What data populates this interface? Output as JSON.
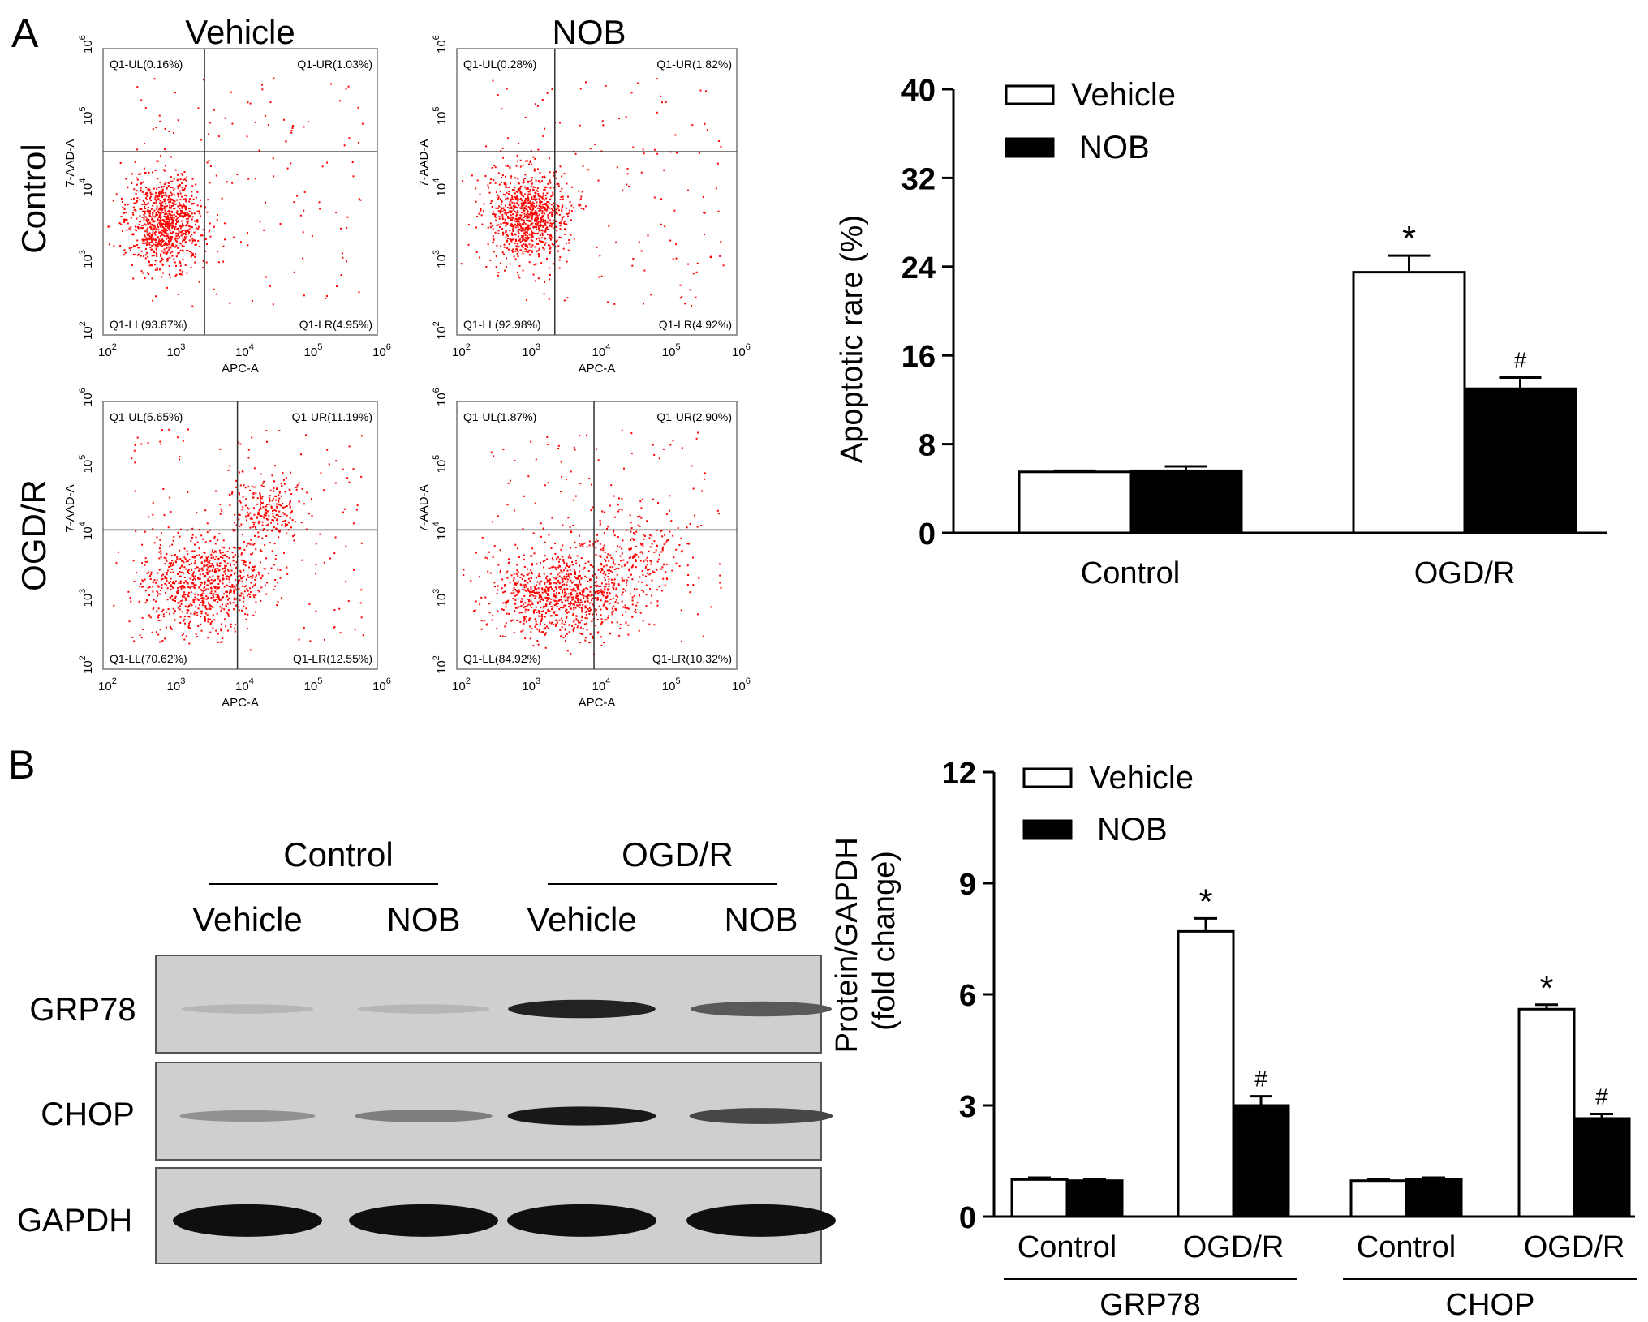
{
  "panel_labels": [
    "A",
    "B"
  ],
  "flow": {
    "col_titles": [
      "Vehicle",
      "NOB"
    ],
    "row_titles": [
      "Control",
      "OGD/R"
    ],
    "x_axis_label": "APC-A",
    "y_axis_label": "7-AAD-A",
    "axis_tick_base": "10",
    "axis_tick_exponents": [
      "2",
      "3",
      "4",
      "5",
      "6"
    ],
    "point_color": "#ff0000",
    "plots": [
      {
        "UL": "Q1-UL(0.16%)",
        "UR": "Q1-UR(1.03%)",
        "LL": "Q1-LL(93.87%)",
        "LR": "Q1-LR(4.95%)"
      },
      {
        "UL": "Q1-UL(0.28%)",
        "UR": "Q1-UR(1.82%)",
        "LL": "Q1-LL(92.98%)",
        "LR": "Q1-LR(4.92%)"
      },
      {
        "UL": "Q1-UL(5.65%)",
        "UR": "Q1-UR(11.19%)",
        "LL": "Q1-LL(70.62%)",
        "LR": "Q1-LR(12.55%)"
      },
      {
        "UL": "Q1-UL(1.87%)",
        "UR": "Q1-UR(2.90%)",
        "LL": "Q1-LL(84.92%)",
        "LR": "Q1-LR(10.32%)"
      }
    ]
  },
  "blot": {
    "group_labels": [
      "Control",
      "OGD/R"
    ],
    "lane_labels": [
      "Vehicle",
      "NOB",
      "Vehicle",
      "NOB"
    ],
    "row_labels": [
      "GRP78",
      "CHOP",
      "GAPDH"
    ],
    "band_intensity": [
      [
        0.1,
        0.1,
        0.9,
        0.6
      ],
      [
        0.3,
        0.4,
        0.95,
        0.7
      ],
      [
        1.0,
        1.0,
        1.0,
        1.0
      ]
    ]
  },
  "chart_data": [
    {
      "type": "bar",
      "title": "",
      "xlabel": "",
      "ylabel": "Apoptotic rare (%)",
      "ylim": [
        0,
        40
      ],
      "yticks": [
        0,
        8,
        16,
        24,
        32,
        40
      ],
      "categories": [
        "Control",
        "OGD/R"
      ],
      "series": [
        {
          "name": "Vehicle",
          "values": [
            5.5,
            23.5
          ],
          "errors": [
            0.1,
            1.5
          ],
          "fill": "#ffffff"
        },
        {
          "name": "NOB",
          "values": [
            5.6,
            13.0
          ],
          "errors": [
            0.4,
            1.0
          ],
          "fill": "#000000"
        }
      ],
      "annotations": [
        {
          "category": "OGD/R",
          "series": "Vehicle",
          "text": "*"
        },
        {
          "category": "OGD/R",
          "series": "NOB",
          "text": "#"
        }
      ],
      "legend": "top-left"
    },
    {
      "type": "bar",
      "title": "",
      "xlabel": "",
      "ylabel": "Protein/GAPDH (fold change)",
      "ylim": [
        0,
        12
      ],
      "yticks": [
        0,
        3,
        6,
        9,
        12
      ],
      "categories": [
        "Control",
        "OGD/R",
        "Control",
        "OGD/R"
      ],
      "groups": [
        {
          "label": "GRP78",
          "categories": [
            0,
            1
          ]
        },
        {
          "label": "CHOP",
          "categories": [
            2,
            3
          ]
        }
      ],
      "series": [
        {
          "name": "Vehicle",
          "values": [
            1.0,
            7.7,
            0.97,
            5.6
          ],
          "errors": [
            0.05,
            0.35,
            0.03,
            0.12
          ],
          "fill": "#ffffff"
        },
        {
          "name": "NOB",
          "values": [
            0.97,
            3.0,
            1.0,
            2.65
          ],
          "errors": [
            0.03,
            0.25,
            0.05,
            0.12
          ],
          "fill": "#000000"
        }
      ],
      "annotations": [
        {
          "category_index": 1,
          "series": "Vehicle",
          "text": "*"
        },
        {
          "category_index": 1,
          "series": "NOB",
          "text": "#"
        },
        {
          "category_index": 3,
          "series": "Vehicle",
          "text": "*"
        },
        {
          "category_index": 3,
          "series": "NOB",
          "text": "#"
        }
      ],
      "legend": "top-left"
    }
  ]
}
